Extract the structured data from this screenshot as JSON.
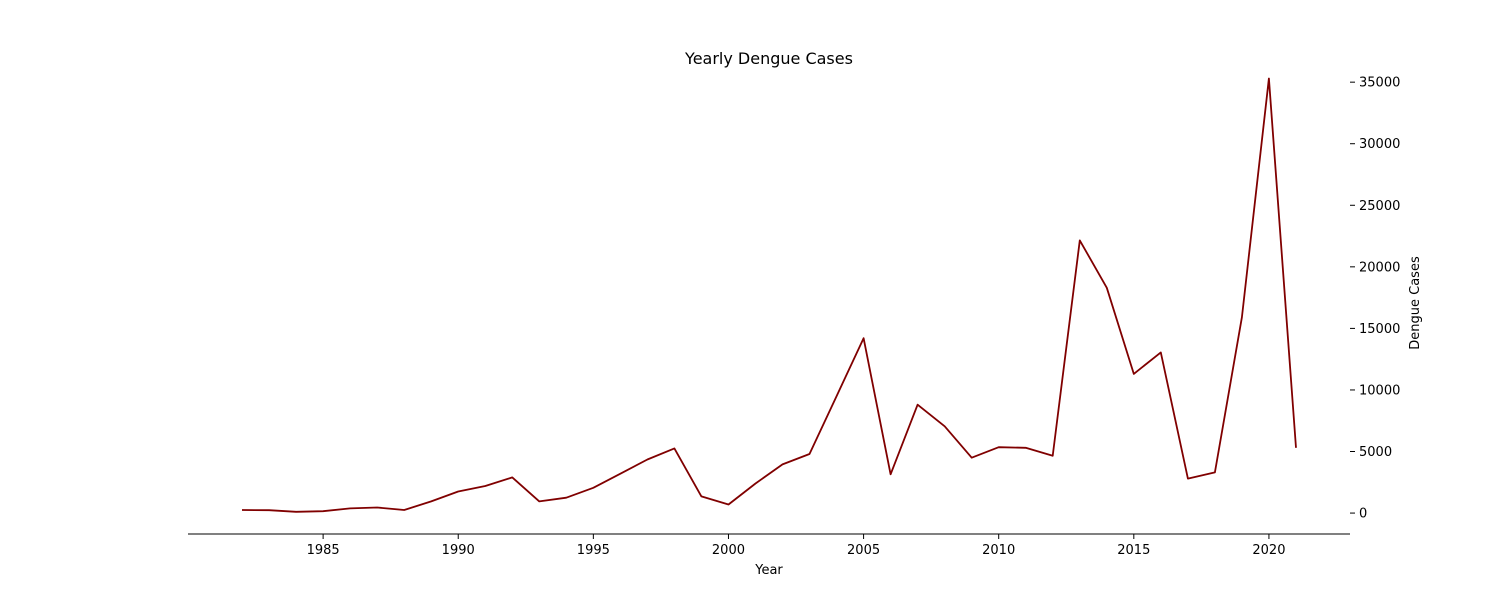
{
  "chart_data": {
    "type": "line",
    "title": "Yearly Dengue Cases",
    "xlabel": "Year",
    "ylabel": "Dengue Cases",
    "xlim": [
      1980,
      2023
    ],
    "ylim": [
      -1700,
      36800
    ],
    "x_ticks": [
      1985,
      1990,
      1995,
      2000,
      2005,
      2010,
      2015,
      2020
    ],
    "y_ticks": [
      0,
      5000,
      10000,
      15000,
      20000,
      25000,
      30000,
      35000
    ],
    "y_axis_position": "right",
    "grid": false,
    "legend": "none",
    "line_color": "#800000",
    "series": [
      {
        "x": [
          1982,
          1983,
          1984,
          1985,
          1986,
          1987,
          1988,
          1989,
          1990,
          1991,
          1992,
          1993,
          1994,
          1995,
          1996,
          1997,
          1998,
          1999,
          2000,
          2001,
          2002,
          2003,
          2004,
          2005,
          2006,
          2007,
          2008,
          2009,
          2010,
          2011,
          2012,
          2013,
          2014,
          2015,
          2016,
          2017,
          2018,
          2019,
          2020,
          2021
        ],
        "values": [
          250,
          230,
          100,
          150,
          380,
          450,
          250,
          950,
          1750,
          2200,
          2900,
          950,
          1250,
          2050,
          3200,
          4350,
          5250,
          1350,
          700,
          2400,
          3950,
          4800,
          9500,
          14200,
          3150,
          8800,
          7050,
          4500,
          5350,
          5300,
          4650,
          22150,
          18300,
          11300,
          13050,
          2800,
          3300,
          15900,
          35300,
          5300
        ]
      }
    ]
  }
}
